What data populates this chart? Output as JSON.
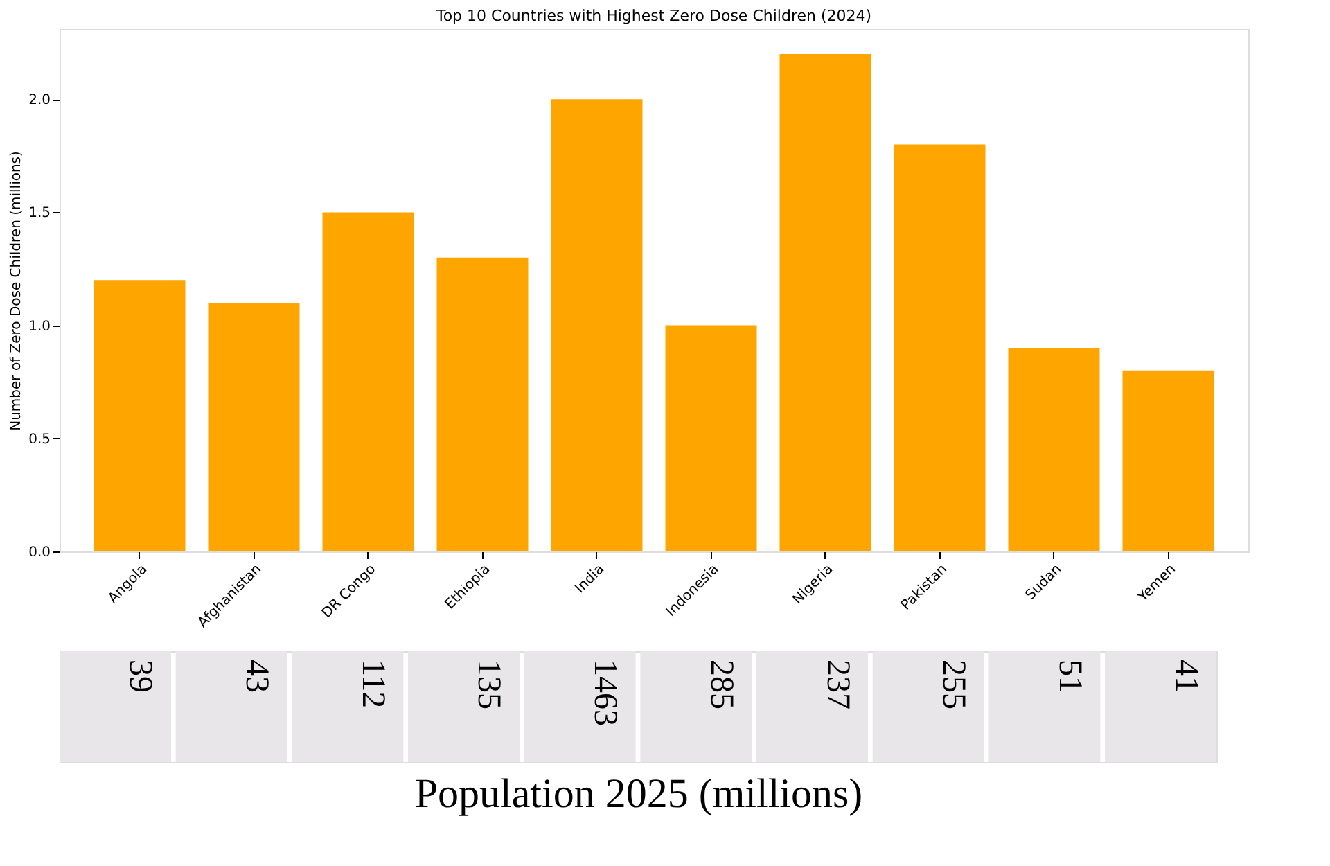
{
  "chart_data": [
    {
      "type": "bar",
      "title": "Top 10 Countries with Highest Zero Dose Children (2024)",
      "ylabel": "Number of Zero Dose Children (millions)",
      "categories": [
        "Angola",
        "Afghanistan",
        "DR Congo",
        "Ethiopia",
        "India",
        "Indonesia",
        "Nigeria",
        "Pakistan",
        "Sudan",
        "Yemen"
      ],
      "values": [
        1.2,
        1.1,
        1.5,
        1.3,
        2.0,
        1.0,
        2.2,
        1.8,
        0.9,
        0.8
      ],
      "color": "#ffa500",
      "ylim": [
        0,
        2.31
      ],
      "yticks": [
        {
          "value": 0,
          "label": "0.0"
        },
        {
          "value": 0.5,
          "label": "0.5"
        },
        {
          "value": 1,
          "label": "1.0"
        },
        {
          "value": 1.5,
          "label": "1.5"
        },
        {
          "value": 2,
          "label": "2.0"
        }
      ],
      "grid": false
    },
    {
      "type": "other",
      "xlabel": "Population 2025 (millions)",
      "categories": [
        null,
        null,
        null,
        null,
        null,
        null,
        null,
        null,
        null,
        null
      ],
      "values": [
        39,
        43,
        112,
        135,
        1463,
        285,
        237,
        255,
        51,
        41
      ],
      "color": "#e8e6e8",
      "data_labels": true
    }
  ]
}
